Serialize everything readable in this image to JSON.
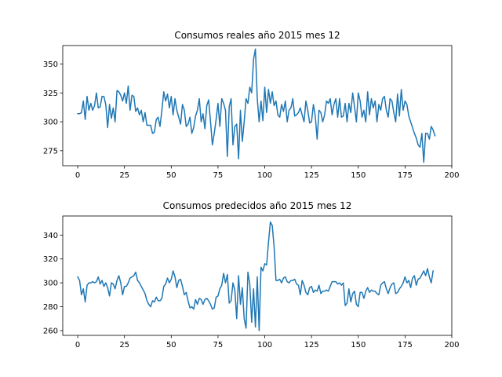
{
  "chart_data": [
    {
      "type": "line",
      "title": "Consumos reales año 2015 mes 12",
      "xlabel": "",
      "ylabel": "",
      "xlim": [
        -8,
        200
      ],
      "ylim": [
        262,
        366
      ],
      "xticks": [
        0,
        25,
        50,
        75,
        100,
        125,
        150,
        175,
        200
      ],
      "yticks": [
        275,
        300,
        325,
        350
      ],
      "grid": false,
      "color": "#1f77b4",
      "series": [
        {
          "values": [
            307,
            307,
            308,
            318,
            302,
            322,
            310,
            316,
            310,
            314,
            325,
            312,
            313,
            322,
            322,
            315,
            295,
            315,
            303,
            312,
            300,
            327,
            326,
            323,
            318,
            325,
            316,
            331,
            310,
            323,
            322,
            309,
            312,
            306,
            310,
            300,
            308,
            297,
            297,
            297,
            290,
            291,
            302,
            304,
            296,
            310,
            326,
            318,
            324,
            312,
            322,
            306,
            320,
            310,
            304,
            298,
            315,
            310,
            296,
            298,
            304,
            290,
            295,
            305,
            310,
            320,
            300,
            307,
            294,
            314,
            319,
            300,
            280,
            290,
            302,
            316,
            296,
            320,
            316,
            310,
            270,
            313,
            320,
            280,
            296,
            298,
            268,
            310,
            283,
            300,
            320,
            316,
            330,
            325,
            354,
            363,
            320,
            300,
            318,
            301,
            330,
            308,
            328,
            316,
            326,
            314,
            318,
            306,
            304,
            315,
            309,
            318,
            300,
            310,
            312,
            320,
            305,
            306,
            308,
            312,
            306,
            300,
            318,
            310,
            299,
            300,
            315,
            305,
            285,
            310,
            308,
            300,
            306,
            318,
            316,
            320,
            306,
            315,
            320,
            304,
            320,
            304,
            305,
            316,
            300,
            316,
            308,
            325,
            313,
            300,
            325,
            318,
            304,
            310,
            300,
            326,
            306,
            320,
            312,
            318,
            300,
            315,
            310,
            320,
            322,
            310,
            304,
            320,
            318,
            308,
            300,
            324,
            305,
            328,
            310,
            318,
            315,
            305,
            300,
            295,
            290,
            286,
            280,
            278,
            290,
            265,
            290,
            290,
            285,
            296,
            293,
            288
          ]
        }
      ]
    },
    {
      "type": "line",
      "title": "Consumos predecidos año 2015 mes 12",
      "xlabel": "",
      "ylabel": "",
      "xlim": [
        -8,
        200
      ],
      "ylim": [
        256,
        356
      ],
      "xticks": [
        0,
        25,
        50,
        75,
        100,
        125,
        150,
        175,
        200
      ],
      "yticks": [
        260,
        280,
        300,
        320,
        340
      ],
      "grid": false,
      "color": "#1f77b4",
      "series": [
        {
          "values": [
            305,
            302,
            290,
            295,
            284,
            298,
            300,
            300,
            301,
            300,
            301,
            305,
            299,
            302,
            297,
            300,
            296,
            289,
            300,
            299,
            295,
            302,
            306,
            300,
            290,
            297,
            297,
            300,
            304,
            305,
            306,
            309,
            302,
            300,
            297,
            294,
            291,
            285,
            282,
            280,
            285,
            284,
            288,
            285,
            285,
            287,
            297,
            299,
            304,
            300,
            303,
            310,
            305,
            296,
            302,
            303,
            297,
            290,
            292,
            285,
            279,
            280,
            278,
            286,
            282,
            287,
            286,
            282,
            286,
            287,
            285,
            282,
            278,
            279,
            288,
            289,
            295,
            298,
            308,
            300,
            307,
            283,
            285,
            300,
            294,
            270,
            306,
            282,
            296,
            270,
            262,
            309,
            299,
            267,
            295,
            263,
            305,
            260,
            313,
            310,
            316,
            315,
            334,
            351,
            348,
            330,
            302,
            302,
            303,
            300,
            304,
            305,
            301,
            300,
            302,
            302,
            303,
            299,
            298,
            290,
            302,
            298,
            292,
            290,
            296,
            297,
            292,
            294,
            293,
            298,
            291,
            293,
            293,
            294,
            293,
            297,
            301,
            301,
            301,
            299,
            300,
            298,
            300,
            281,
            283,
            295,
            284,
            291,
            293,
            282,
            280,
            292,
            292,
            287,
            293,
            296,
            292,
            294,
            293,
            293,
            291,
            290,
            298,
            300,
            301,
            295,
            291,
            296,
            299,
            300,
            291,
            292,
            295,
            297,
            300,
            305,
            300,
            302,
            296,
            304,
            306,
            298,
            303,
            304,
            307,
            310,
            306,
            312,
            305,
            300,
            310
          ]
        }
      ]
    }
  ]
}
